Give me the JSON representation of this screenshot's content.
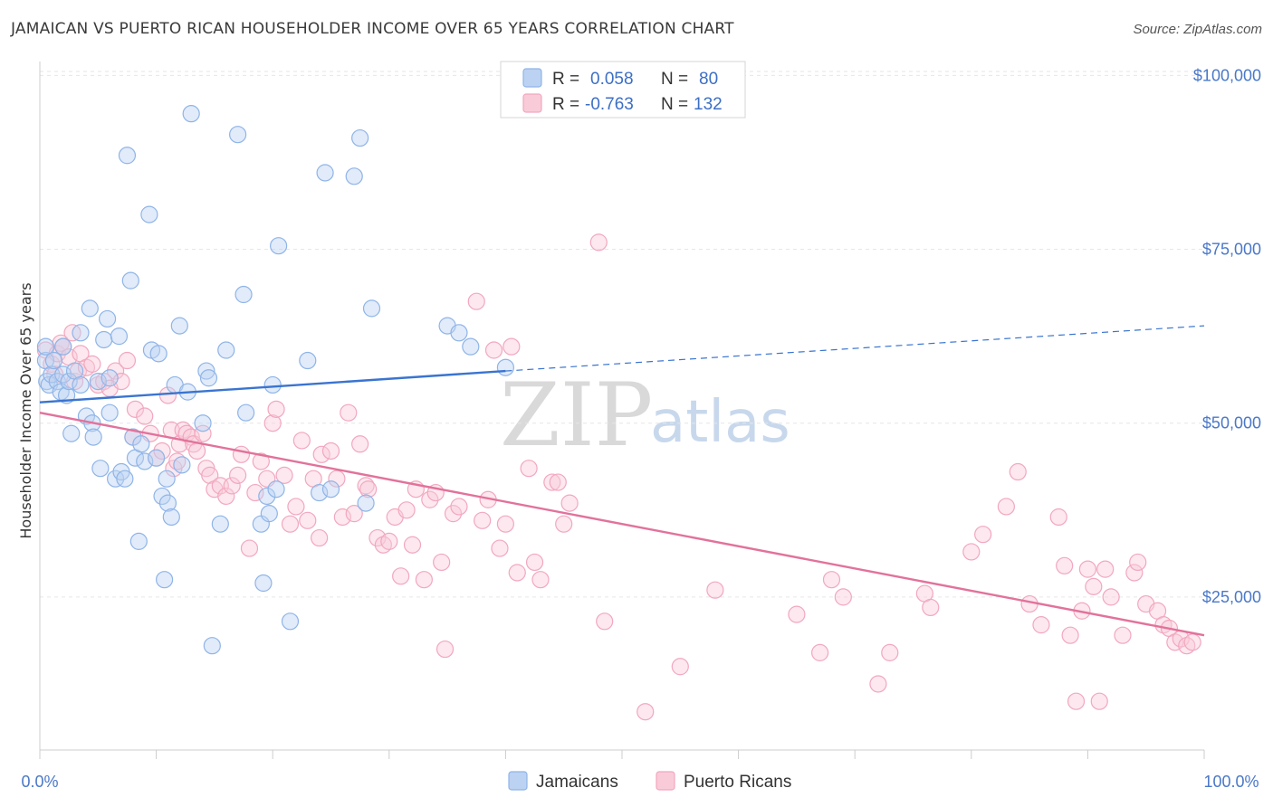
{
  "title": "JAMAICAN VS PUERTO RICAN HOUSEHOLDER INCOME OVER 65 YEARS CORRELATION CHART",
  "source": "Source: ZipAtlas.com",
  "watermark": {
    "part1": "ZIP",
    "part2": "atlas"
  },
  "legend": {
    "rows": [
      {
        "r_label": "R =",
        "r_value": "0.058",
        "n_label": "N =",
        "n_value": "80",
        "color": "#8fb4e8"
      },
      {
        "r_label": "R =",
        "r_value": "-0.763",
        "n_label": "N =",
        "n_value": "132",
        "color": "#f2a7bf"
      }
    ]
  },
  "bottom_legend": [
    "Jamaicans",
    "Puerto Ricans"
  ],
  "chart_data": {
    "type": "scatter",
    "ylabel": "Householder Income Over 65 years",
    "x_tick_labels": [
      "0.0%",
      "100.0%"
    ],
    "y_tick_labels": [
      "$100,000",
      "$75,000",
      "$50,000",
      "$25,000"
    ],
    "y_ticks": [
      100000,
      75000,
      50000,
      25000
    ],
    "xlim": [
      0,
      100
    ],
    "ylim": [
      3000,
      102000
    ],
    "grid": true,
    "series": [
      {
        "name": "Jamaicans",
        "color": "#8fb4e8",
        "line_color": "#3a74d0",
        "trend": {
          "x0": 0,
          "y0": 53000,
          "x1": 40,
          "y1": 57500,
          "x_ext": 100,
          "y_ext": 64000
        },
        "points": [
          [
            0.5,
            59
          ],
          [
            0.5,
            61
          ],
          [
            0.6,
            56
          ],
          [
            0.8,
            55.5
          ],
          [
            1,
            57
          ],
          [
            1.2,
            59
          ],
          [
            1.5,
            56
          ],
          [
            1.8,
            54.5
          ],
          [
            2,
            61
          ],
          [
            2,
            57
          ],
          [
            2.3,
            54
          ],
          [
            2.5,
            56
          ],
          [
            2.7,
            48.5
          ],
          [
            3,
            57.5
          ],
          [
            3.5,
            63
          ],
          [
            3.5,
            55.5
          ],
          [
            4,
            51
          ],
          [
            4.3,
            66.5
          ],
          [
            4.5,
            50
          ],
          [
            4.6,
            48
          ],
          [
            5,
            56
          ],
          [
            5.2,
            43.5
          ],
          [
            5.5,
            62
          ],
          [
            5.8,
            65
          ],
          [
            6,
            51.5
          ],
          [
            6,
            56.5
          ],
          [
            6.5,
            42
          ],
          [
            6.8,
            62.5
          ],
          [
            7,
            43
          ],
          [
            7.3,
            42
          ],
          [
            7.5,
            88.5
          ],
          [
            7.8,
            70.5
          ],
          [
            8,
            48
          ],
          [
            8.2,
            45
          ],
          [
            8.5,
            33
          ],
          [
            8.7,
            47
          ],
          [
            9,
            44.5
          ],
          [
            9.4,
            80
          ],
          [
            9.6,
            60.5
          ],
          [
            10,
            45
          ],
          [
            10.2,
            60
          ],
          [
            10.5,
            39.5
          ],
          [
            10.7,
            27.5
          ],
          [
            10.9,
            42
          ],
          [
            11,
            38.5
          ],
          [
            11.3,
            36.5
          ],
          [
            11.6,
            55.5
          ],
          [
            12,
            64
          ],
          [
            12.2,
            44
          ],
          [
            12.7,
            54.5
          ],
          [
            13,
            94.5
          ],
          [
            14,
            50
          ],
          [
            14.3,
            57.5
          ],
          [
            14.5,
            56.5
          ],
          [
            14.8,
            18
          ],
          [
            15.5,
            35.5
          ],
          [
            16,
            60.5
          ],
          [
            17,
            91.5
          ],
          [
            17.5,
            68.5
          ],
          [
            17.7,
            51.5
          ],
          [
            19,
            35.5
          ],
          [
            19.2,
            27
          ],
          [
            19.5,
            39.5
          ],
          [
            19.7,
            37
          ],
          [
            20,
            55.5
          ],
          [
            20.3,
            40.5
          ],
          [
            20.5,
            75.5
          ],
          [
            21.5,
            21.5
          ],
          [
            23,
            59
          ],
          [
            24,
            40
          ],
          [
            24.5,
            86
          ],
          [
            25,
            40.5
          ],
          [
            27,
            85.5
          ],
          [
            27.5,
            91
          ],
          [
            28,
            38.5
          ],
          [
            28.5,
            66.5
          ],
          [
            35,
            64
          ],
          [
            36,
            63
          ],
          [
            37,
            61
          ],
          [
            40,
            58
          ]
        ]
      },
      {
        "name": "Puerto Ricans",
        "color": "#f2a7bf",
        "line_color": "#e2729b",
        "trend": {
          "x0": 0,
          "y0": 51500,
          "x1": 100,
          "y1": 19500
        },
        "points": [
          [
            0.5,
            60.5
          ],
          [
            1,
            58.5
          ],
          [
            1.3,
            57
          ],
          [
            1.5,
            60
          ],
          [
            1.8,
            61.5
          ],
          [
            2,
            61
          ],
          [
            2.5,
            59.5
          ],
          [
            2.8,
            63
          ],
          [
            3,
            56
          ],
          [
            3.3,
            57.5
          ],
          [
            3.5,
            60
          ],
          [
            4,
            58
          ],
          [
            4.5,
            58.5
          ],
          [
            5,
            55.5
          ],
          [
            5.5,
            56
          ],
          [
            6,
            55
          ],
          [
            6.5,
            57.5
          ],
          [
            7,
            56
          ],
          [
            7.5,
            59
          ],
          [
            8,
            48
          ],
          [
            8.2,
            52
          ],
          [
            9,
            51
          ],
          [
            9.5,
            48.5
          ],
          [
            10,
            45
          ],
          [
            10.5,
            46
          ],
          [
            11,
            54
          ],
          [
            11.3,
            49
          ],
          [
            11.5,
            43.5
          ],
          [
            11.8,
            44.5
          ],
          [
            12,
            47
          ],
          [
            12.3,
            49
          ],
          [
            12.6,
            48.5
          ],
          [
            13,
            48
          ],
          [
            13.2,
            47
          ],
          [
            13.5,
            46
          ],
          [
            14,
            48.5
          ],
          [
            14.3,
            43.5
          ],
          [
            14.6,
            42.5
          ],
          [
            15,
            40.5
          ],
          [
            15.5,
            41
          ],
          [
            16,
            39.5
          ],
          [
            16.5,
            41
          ],
          [
            17,
            42.5
          ],
          [
            17.3,
            45.5
          ],
          [
            18,
            32
          ],
          [
            18.5,
            40
          ],
          [
            19,
            44.5
          ],
          [
            19.5,
            42
          ],
          [
            20,
            50
          ],
          [
            20.3,
            52
          ],
          [
            21,
            42.5
          ],
          [
            21.5,
            35.5
          ],
          [
            22,
            38
          ],
          [
            22.5,
            47.5
          ],
          [
            23,
            36
          ],
          [
            23.5,
            42
          ],
          [
            24,
            33.5
          ],
          [
            24.2,
            45.5
          ],
          [
            25,
            46
          ],
          [
            25.5,
            42
          ],
          [
            26,
            36.5
          ],
          [
            26.5,
            51.5
          ],
          [
            27,
            37
          ],
          [
            27.5,
            47
          ],
          [
            28,
            41
          ],
          [
            28.2,
            40.5
          ],
          [
            29,
            33.5
          ],
          [
            29.5,
            32.5
          ],
          [
            30,
            33
          ],
          [
            30.5,
            36.5
          ],
          [
            31,
            28
          ],
          [
            31.5,
            37.5
          ],
          [
            32,
            32.5
          ],
          [
            32.3,
            40.5
          ],
          [
            33,
            27.5
          ],
          [
            33.5,
            39
          ],
          [
            34,
            40
          ],
          [
            34.5,
            30
          ],
          [
            34.8,
            17.5
          ],
          [
            35.5,
            37
          ],
          [
            36,
            38
          ],
          [
            37.5,
            67.5
          ],
          [
            38,
            36
          ],
          [
            38.5,
            39
          ],
          [
            39,
            60.5
          ],
          [
            39.5,
            32
          ],
          [
            40,
            35.5
          ],
          [
            40.5,
            61
          ],
          [
            41,
            28.5
          ],
          [
            42,
            43.5
          ],
          [
            42.5,
            30
          ],
          [
            43,
            27.5
          ],
          [
            44,
            41.5
          ],
          [
            44.5,
            41.5
          ],
          [
            45,
            35.5
          ],
          [
            45.5,
            38.5
          ],
          [
            48,
            76
          ],
          [
            48.5,
            21.5
          ],
          [
            52,
            8.5
          ],
          [
            55,
            15
          ],
          [
            58,
            26
          ],
          [
            65,
            22.5
          ],
          [
            67,
            17
          ],
          [
            68,
            27.5
          ],
          [
            69,
            25
          ],
          [
            72,
            12.5
          ],
          [
            73,
            17
          ],
          [
            76,
            25.5
          ],
          [
            76.5,
            23.5
          ],
          [
            80,
            31.5
          ],
          [
            81,
            34
          ],
          [
            83,
            38
          ],
          [
            84,
            43
          ],
          [
            85,
            24
          ],
          [
            86,
            21
          ],
          [
            87.5,
            36.5
          ],
          [
            88,
            29.5
          ],
          [
            88.5,
            19.5
          ],
          [
            89,
            10
          ],
          [
            89.5,
            23
          ],
          [
            90,
            29
          ],
          [
            90.5,
            26.5
          ],
          [
            91,
            10
          ],
          [
            91.5,
            29
          ],
          [
            92,
            25
          ],
          [
            93,
            19.5
          ],
          [
            94,
            28.5
          ],
          [
            94.3,
            30
          ],
          [
            95,
            24
          ],
          [
            96,
            23
          ],
          [
            96.5,
            21
          ],
          [
            97,
            20.5
          ],
          [
            97.5,
            18.5
          ],
          [
            98,
            19
          ],
          [
            98.5,
            18
          ],
          [
            99,
            18.5
          ]
        ]
      }
    ]
  }
}
